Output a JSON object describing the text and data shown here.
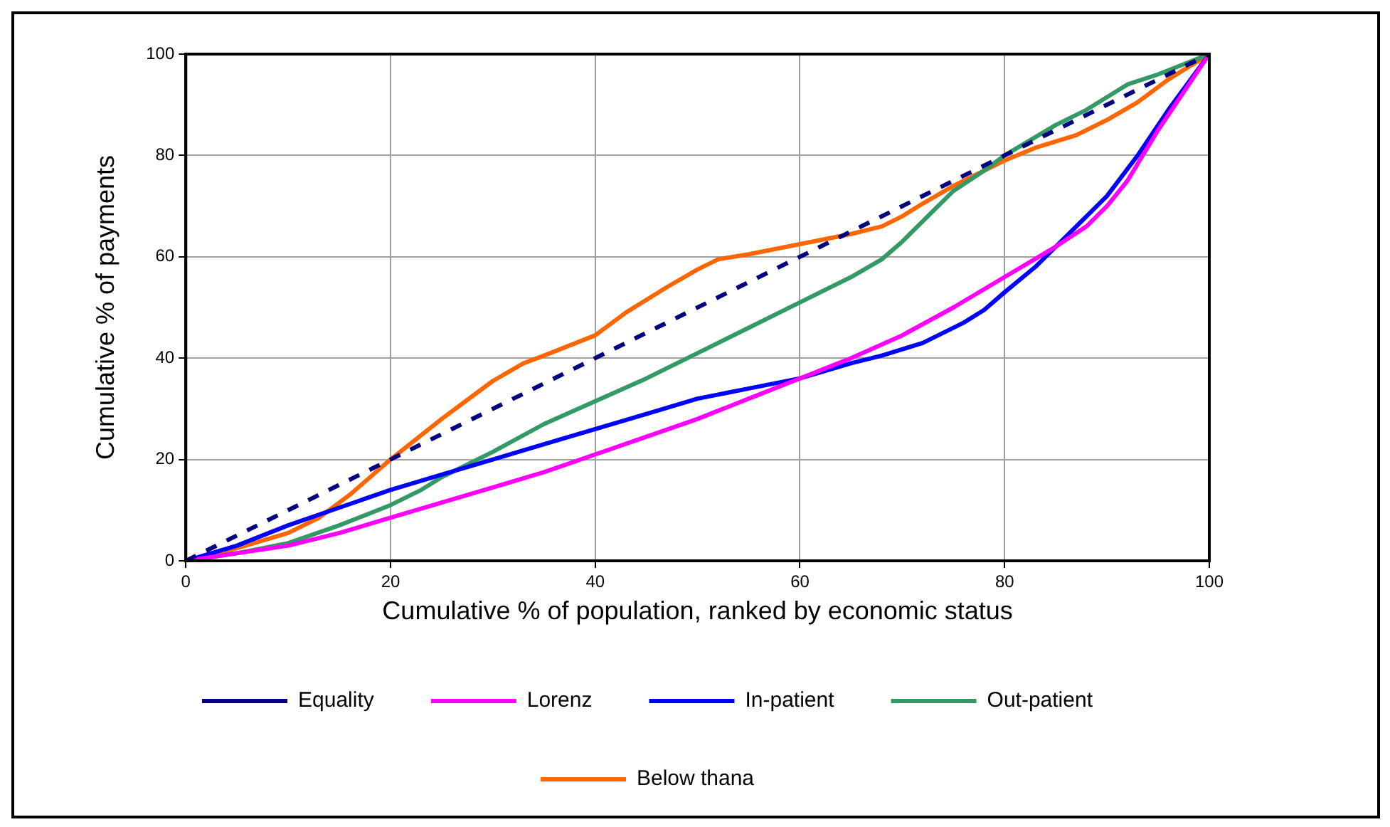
{
  "chart_data": {
    "type": "line",
    "xlabel": "Cumulative % of population, ranked by economic status",
    "ylabel": "Cumulative % of payments",
    "xlim": [
      0,
      100
    ],
    "ylim": [
      0,
      100
    ],
    "xticks": [
      0,
      20,
      40,
      60,
      80,
      100
    ],
    "yticks": [
      0,
      20,
      40,
      60,
      80,
      100
    ],
    "grid": true,
    "legend": "bottom",
    "marker": "none",
    "series": [
      {
        "name": "Equality",
        "color": "#000080",
        "line_style": "dashed",
        "x": [
          0,
          100
        ],
        "values": [
          0,
          100
        ]
      },
      {
        "name": "Lorenz",
        "color": "#ff00ff",
        "line_style": "solid",
        "x": [
          0,
          10,
          15,
          20,
          25,
          30,
          35,
          40,
          45,
          50,
          55,
          60,
          65,
          70,
          75,
          80,
          85,
          88,
          90,
          92,
          95,
          100
        ],
        "values": [
          0,
          3,
          5.5,
          8.5,
          11.5,
          14.5,
          17.5,
          21,
          24.5,
          28,
          32,
          36,
          40,
          44.5,
          50,
          56,
          62,
          66,
          70,
          75,
          85,
          100
        ]
      },
      {
        "name": "In-patient",
        "color": "#0000ff",
        "line_style": "solid",
        "x": [
          0,
          5,
          10,
          15,
          20,
          25,
          30,
          35,
          40,
          45,
          50,
          55,
          60,
          65,
          68,
          72,
          76,
          78,
          80,
          83,
          86,
          90,
          93,
          96,
          100
        ],
        "values": [
          0,
          3,
          7,
          10.5,
          14,
          17,
          20,
          23,
          26,
          29,
          32,
          34,
          36,
          39,
          40.5,
          43,
          47,
          49.5,
          53,
          58,
          64,
          72,
          80,
          89,
          100
        ]
      },
      {
        "name": "Out-patient",
        "color": "#339966",
        "line_style": "solid",
        "x": [
          0,
          5,
          10,
          15,
          20,
          23,
          25,
          30,
          35,
          40,
          45,
          50,
          55,
          60,
          65,
          68,
          70,
          72,
          75,
          78,
          80,
          85,
          88,
          92,
          95,
          100
        ],
        "values": [
          0,
          1.5,
          3.5,
          7,
          11,
          14,
          16.5,
          21.5,
          27,
          31.5,
          36,
          41,
          46,
          51,
          56,
          59.5,
          63,
          67,
          73,
          77,
          80,
          86,
          89,
          94,
          96,
          100
        ]
      },
      {
        "name": "Below thana",
        "color": "#ff6600",
        "line_style": "solid",
        "x": [
          0,
          5,
          10,
          13,
          16,
          20,
          25,
          27,
          30,
          33,
          35,
          40,
          43,
          47,
          50,
          52,
          55,
          60,
          65,
          68,
          70,
          72,
          75,
          80,
          83,
          87,
          90,
          93,
          96,
          100
        ],
        "values": [
          0,
          2.5,
          5.5,
          8.5,
          13,
          20,
          28,
          31,
          35.5,
          39,
          40.5,
          44.5,
          49,
          54,
          57.5,
          59.5,
          60.5,
          62.5,
          64.5,
          66,
          68,
          70.5,
          74,
          79,
          81.5,
          84,
          87,
          90.5,
          95,
          100
        ]
      }
    ]
  }
}
